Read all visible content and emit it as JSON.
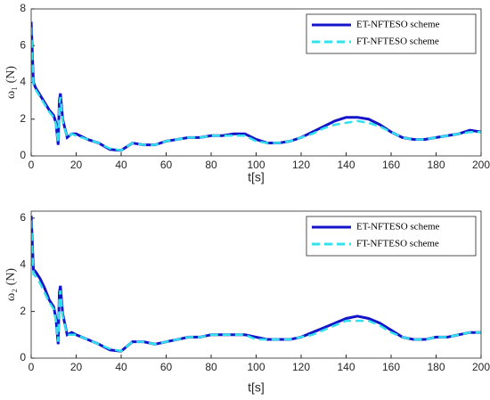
{
  "chart_data": [
    {
      "type": "line",
      "xlabel": "t[s]",
      "ylabel": "ω₁ (N)",
      "x": [
        0,
        1,
        2,
        4,
        6,
        8,
        10,
        11,
        12,
        12.5,
        13,
        14,
        16,
        18,
        20,
        25,
        30,
        35,
        40,
        45,
        50,
        55,
        60,
        65,
        70,
        75,
        80,
        85,
        90,
        95,
        100,
        105,
        110,
        115,
        120,
        125,
        130,
        135,
        140,
        145,
        150,
        155,
        160,
        165,
        170,
        175,
        180,
        185,
        190,
        195,
        200
      ],
      "series": [
        {
          "name": "ET-NFTESO scheme",
          "color": "#1414c8",
          "dash": false,
          "values": [
            7.3,
            4.0,
            3.7,
            3.3,
            2.9,
            2.5,
            2.2,
            1.8,
            0.6,
            3.0,
            3.4,
            2.0,
            1.0,
            1.2,
            1.2,
            0.9,
            0.7,
            0.35,
            0.3,
            0.7,
            0.6,
            0.6,
            0.8,
            0.9,
            1.0,
            1.0,
            1.1,
            1.1,
            1.2,
            1.2,
            0.9,
            0.7,
            0.7,
            0.8,
            1.0,
            1.3,
            1.6,
            1.9,
            2.1,
            2.1,
            2.0,
            1.7,
            1.3,
            1.0,
            0.9,
            0.9,
            1.0,
            1.1,
            1.2,
            1.4,
            1.3
          ]
        },
        {
          "name": "FT-NFTESO scheme",
          "color": "#33e0ee",
          "dash": true,
          "values": [
            7.0,
            3.9,
            3.6,
            3.2,
            2.8,
            2.4,
            2.1,
            1.7,
            0.7,
            2.8,
            3.2,
            1.9,
            1.0,
            1.2,
            1.1,
            0.9,
            0.7,
            0.4,
            0.3,
            0.7,
            0.6,
            0.6,
            0.8,
            0.9,
            1.0,
            1.0,
            1.1,
            1.1,
            1.1,
            1.1,
            0.8,
            0.7,
            0.7,
            0.8,
            1.0,
            1.2,
            1.5,
            1.7,
            1.8,
            1.9,
            1.8,
            1.6,
            1.3,
            1.0,
            0.9,
            0.9,
            1.0,
            1.1,
            1.2,
            1.3,
            1.3
          ]
        }
      ],
      "xlim": [
        0,
        200
      ],
      "xticks": [
        0,
        20,
        40,
        60,
        80,
        100,
        120,
        140,
        160,
        180,
        200
      ],
      "ylim": [
        0,
        8
      ],
      "yticks": [
        0,
        2,
        4,
        6,
        8
      ],
      "legend": "upper right",
      "grid": false
    },
    {
      "type": "line",
      "xlabel": "t[s]",
      "ylabel": "ω₂ (N)",
      "x": [
        0,
        1,
        2,
        4,
        6,
        8,
        10,
        11,
        12,
        12.5,
        13,
        14,
        16,
        18,
        20,
        25,
        30,
        35,
        40,
        45,
        50,
        55,
        60,
        65,
        70,
        75,
        80,
        85,
        90,
        95,
        100,
        105,
        110,
        115,
        120,
        125,
        130,
        135,
        140,
        145,
        150,
        155,
        160,
        165,
        170,
        175,
        180,
        185,
        190,
        195,
        200
      ],
      "series": [
        {
          "name": "ET-NFTESO scheme",
          "color": "#1414c8",
          "dash": false,
          "values": [
            6.1,
            3.8,
            3.7,
            3.4,
            3.0,
            2.5,
            2.2,
            1.7,
            0.6,
            2.8,
            3.1,
            1.9,
            1.0,
            1.1,
            1.0,
            0.8,
            0.6,
            0.35,
            0.3,
            0.7,
            0.7,
            0.6,
            0.7,
            0.8,
            0.9,
            0.9,
            1.0,
            1.0,
            1.0,
            1.0,
            0.9,
            0.8,
            0.8,
            0.8,
            0.9,
            1.1,
            1.3,
            1.5,
            1.7,
            1.8,
            1.7,
            1.5,
            1.2,
            0.9,
            0.8,
            0.8,
            0.9,
            0.9,
            1.0,
            1.1,
            1.1
          ]
        },
        {
          "name": "FT-NFTESO scheme",
          "color": "#33e0ee",
          "dash": true,
          "values": [
            5.9,
            3.6,
            3.5,
            3.2,
            2.8,
            2.4,
            2.1,
            1.6,
            0.7,
            2.6,
            2.9,
            1.8,
            1.0,
            1.0,
            1.0,
            0.8,
            0.6,
            0.4,
            0.3,
            0.7,
            0.7,
            0.6,
            0.7,
            0.8,
            0.9,
            0.9,
            1.0,
            1.0,
            1.0,
            1.0,
            0.8,
            0.8,
            0.8,
            0.8,
            0.9,
            1.0,
            1.2,
            1.4,
            1.6,
            1.6,
            1.6,
            1.4,
            1.1,
            0.9,
            0.8,
            0.8,
            0.9,
            0.9,
            1.0,
            1.1,
            1.1
          ]
        }
      ],
      "xlim": [
        0,
        200
      ],
      "xticks": [
        0,
        20,
        40,
        60,
        80,
        100,
        120,
        140,
        160,
        180,
        200
      ],
      "ylim": [
        0,
        6.3
      ],
      "yticks": [
        0,
        2,
        4,
        6
      ],
      "legend": "upper right",
      "grid": false
    }
  ]
}
